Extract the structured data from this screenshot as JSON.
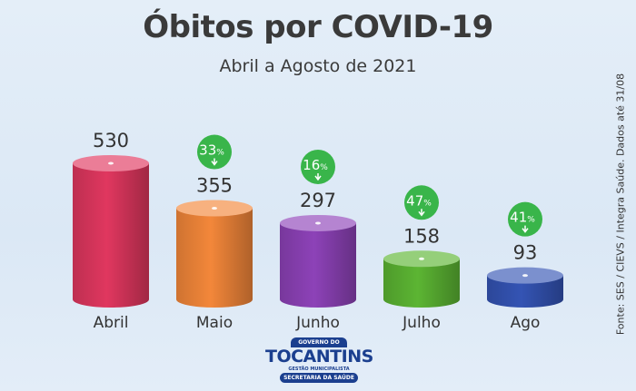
{
  "chart_data": {
    "type": "bar",
    "title": "Óbitos por COVID-19",
    "subtitle": "Abril a Agosto de 2021",
    "categories": [
      "Abril",
      "Maio",
      "Junho",
      "Julho",
      "Ago"
    ],
    "values": [
      530,
      355,
      297,
      158,
      93
    ],
    "value_labels": [
      "530",
      "355",
      "297",
      "158",
      "93"
    ],
    "decrease_badges": [
      null,
      "33",
      "16",
      "47",
      "41"
    ],
    "badge_unit": "%",
    "colors": [
      "#e0375f",
      "#f3873a",
      "#8d42b8",
      "#5cb533",
      "#3454b4"
    ],
    "badge_color": "#39b54a",
    "ylim": [
      0,
      530
    ],
    "grid": false
  },
  "source_note": "Fonte: SES / CIEVS / Integra Saúde. Dados até 31/08",
  "logo": {
    "top_text": "GOVERNO DO",
    "main_text": "TOCANTINS",
    "sub_text": "GESTÃO MUNICIPALISTA",
    "bottom_text": "SECRETARIA DA SAÚDE"
  }
}
